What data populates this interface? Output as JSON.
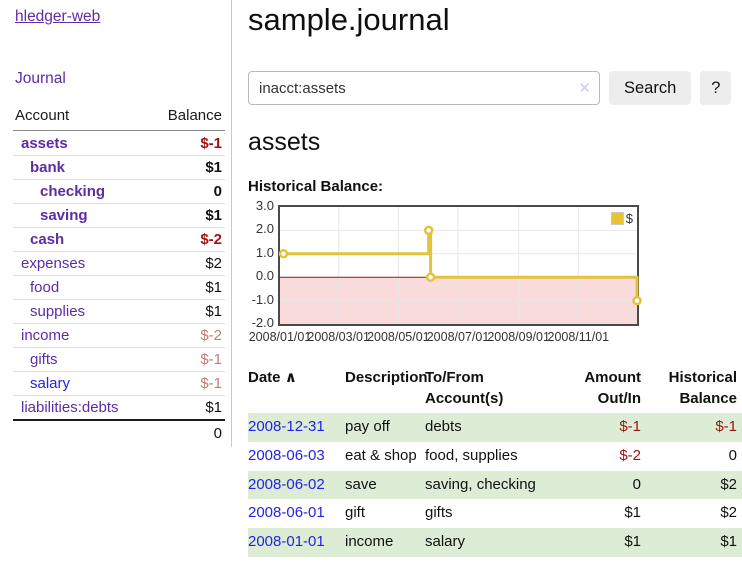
{
  "app": {
    "brand": "hledger-web"
  },
  "nav": {
    "journal": "Journal"
  },
  "sidebar": {
    "header": {
      "account": "Account",
      "balance": "Balance"
    },
    "items": [
      {
        "name": "assets",
        "balance": "$-1",
        "indent": 0,
        "matched": true,
        "balance_tone": "neg-strong",
        "link": "visited"
      },
      {
        "name": "bank",
        "balance": "$1",
        "indent": 1,
        "matched": true,
        "balance_tone": "normal",
        "link": "visited"
      },
      {
        "name": "checking",
        "balance": "0",
        "indent": 2,
        "matched": true,
        "balance_tone": "normal",
        "link": "visited"
      },
      {
        "name": "saving",
        "balance": "$1",
        "indent": 2,
        "matched": true,
        "balance_tone": "normal",
        "link": "visited"
      },
      {
        "name": "cash",
        "balance": "$-2",
        "indent": 1,
        "matched": true,
        "balance_tone": "neg-strong",
        "link": "visited"
      },
      {
        "name": "expenses",
        "balance": "$2",
        "indent": 0,
        "matched": false,
        "balance_tone": "normal",
        "link": "visited"
      },
      {
        "name": "food",
        "balance": "$1",
        "indent": 1,
        "matched": false,
        "balance_tone": "normal",
        "link": "visited"
      },
      {
        "name": "supplies",
        "balance": "$1",
        "indent": 1,
        "matched": false,
        "balance_tone": "normal",
        "link": "visited"
      },
      {
        "name": "income",
        "balance": "$-2",
        "indent": 0,
        "matched": false,
        "balance_tone": "neg-soft",
        "link": "visited"
      },
      {
        "name": "gifts",
        "balance": "$-1",
        "indent": 1,
        "matched": false,
        "balance_tone": "neg-soft",
        "link": "visited"
      },
      {
        "name": "salary",
        "balance": "$-1",
        "indent": 1,
        "matched": false,
        "balance_tone": "neg-soft",
        "link": "unvisited"
      },
      {
        "name": "liabilities:debts",
        "balance": "$1",
        "indent": 0,
        "matched": false,
        "balance_tone": "normal",
        "link": "visited"
      }
    ],
    "total": "0"
  },
  "header": {
    "title": "sample.journal"
  },
  "search": {
    "value": "inacct:assets",
    "clear_icon": "✕",
    "button_label": "Search",
    "help_label": "?"
  },
  "account_page": {
    "title": "assets",
    "chart_heading": "Historical Balance:"
  },
  "chart_data": {
    "type": "line",
    "title": "Historical Balance",
    "series": [
      {
        "name": "$",
        "step": true,
        "color": "#e4c23c",
        "points": [
          [
            "2008-01-01",
            1
          ],
          [
            "2008-06-01",
            2
          ],
          [
            "2008-06-03",
            0
          ],
          [
            "2008-12-31",
            -1
          ]
        ]
      }
    ],
    "x_range": [
      "2008-01-01",
      "2008-12-31"
    ],
    "x_ticks": [
      "2008/01/01",
      "2008/03/01",
      "2008/05/01",
      "2008/07/01",
      "2008/09/01",
      "2008/11/01"
    ],
    "y_ticks": [
      3.0,
      2.0,
      1.0,
      0.0,
      -1.0,
      -2.0
    ],
    "ylim": [
      -2,
      3
    ],
    "grid": true,
    "legend": {
      "label": "$",
      "position": "top-right"
    },
    "colors": {
      "negative_region": "#fadbdb",
      "zero_line": "#8b1a1a",
      "gridline": "#e7e7e7",
      "border": "#4a4a4a"
    }
  },
  "register": {
    "headers": {
      "date": "Date",
      "sort_icon": "∧",
      "description": "Description",
      "accounts": "To/From Account(s)",
      "amount": "Amount Out/In",
      "balance": "Historical Balance"
    },
    "rows": [
      {
        "date": "2008-12-31",
        "description": "pay off",
        "accounts": "debts",
        "amount": "$-1",
        "balance": "$-1"
      },
      {
        "date": "2008-06-03",
        "description": "eat & shop",
        "accounts": "food, supplies",
        "amount": "$-2",
        "balance": "0"
      },
      {
        "date": "2008-06-02",
        "description": "save",
        "accounts": "saving, checking",
        "amount": "0",
        "balance": "$2"
      },
      {
        "date": "2008-06-01",
        "description": "gift",
        "accounts": "gifts",
        "amount": "$1",
        "balance": "$2"
      },
      {
        "date": "2008-01-01",
        "description": "income",
        "accounts": "salary",
        "amount": "$1",
        "balance": "$1"
      }
    ]
  }
}
